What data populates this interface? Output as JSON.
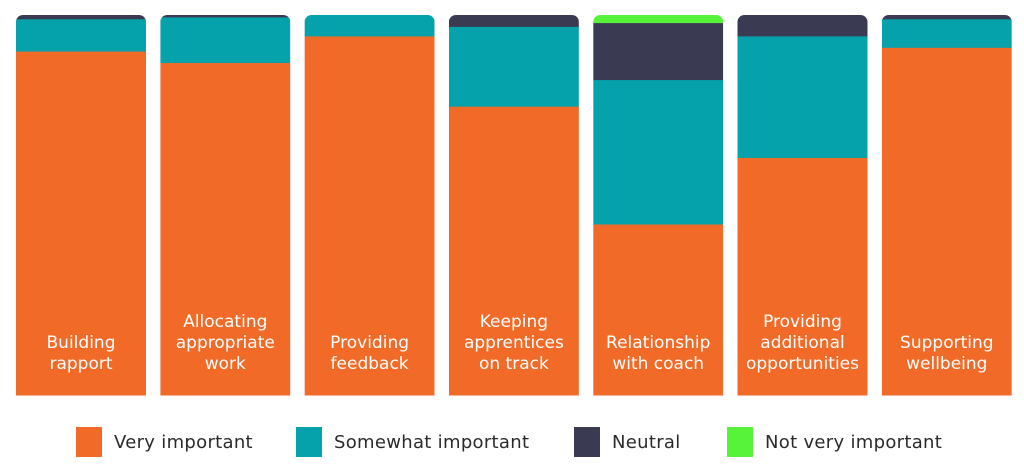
{
  "chart_data": {
    "type": "bar",
    "stacked": true,
    "normalized": true,
    "ylim": [
      0,
      100
    ],
    "categories": [
      "Building rapport",
      "Allocating appropriate work",
      "Providing feedback",
      "Keeping apprentices on track",
      "Relationship with coach",
      "Providing additional opportunities",
      "Supporting wellbeing"
    ],
    "category_lines": [
      [
        "Building",
        "rapport"
      ],
      [
        "Allocating",
        "appropriate",
        "work"
      ],
      [
        "Providing",
        "feedback"
      ],
      [
        "Keeping",
        "apprentices",
        "on track"
      ],
      [
        "Relationship",
        "with coach"
      ],
      [
        "Providing",
        "additional",
        "opportunities"
      ],
      [
        "Supporting",
        "wellbeing"
      ]
    ],
    "series": [
      {
        "name": "Very important",
        "color": "#F26A27",
        "values": [
          90.5,
          87.5,
          94.5,
          76,
          45,
          62.5,
          91.5
        ]
      },
      {
        "name": "Somewhat important",
        "color": "#06A2AB",
        "values": [
          8.5,
          12,
          5.5,
          21,
          38,
          32,
          7.5
        ]
      },
      {
        "name": "Neutral",
        "color": "#3B3A53",
        "values": [
          1,
          0.5,
          0,
          3,
          15,
          5.5,
          1
        ]
      },
      {
        "name": "Not very important",
        "color": "#57F23A",
        "values": [
          0,
          0,
          0,
          0,
          2,
          0,
          0
        ]
      }
    ],
    "legend_position": "bottom",
    "grid": false,
    "xlabel": "",
    "ylabel": ""
  }
}
